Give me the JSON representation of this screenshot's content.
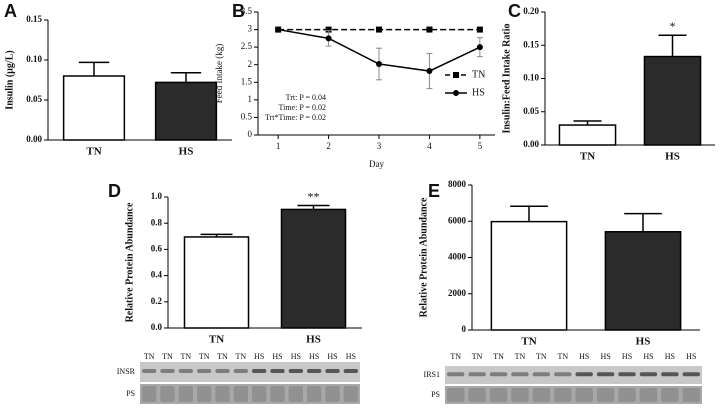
{
  "chart_data": [
    {
      "type": "bar",
      "label": "A",
      "ylabel": "Insulin (µg/L)",
      "categories": [
        "TN",
        "HS"
      ],
      "values": [
        0.08,
        0.072
      ],
      "errors": [
        0.017,
        0.012
      ],
      "colors": [
        "#ffffff",
        "#2b2b2b"
      ],
      "ylim": [
        0,
        0.15
      ],
      "yticks": [
        {
          "value": 0,
          "label": "0.00"
        },
        {
          "value": 0.05,
          "label": "0.05"
        },
        {
          "value": 0.1,
          "label": "0.10"
        },
        {
          "value": 0.15,
          "label": "0.15"
        }
      ]
    },
    {
      "type": "line",
      "label": "B",
      "xlabel": "Day",
      "ylabel": "Feed Intake (kg)",
      "x": [
        1,
        2,
        3,
        4,
        5
      ],
      "series": [
        {
          "name": "TN",
          "color": "#000000",
          "dash": true,
          "marker": "square",
          "values": [
            3,
            3,
            3,
            3,
            3
          ]
        },
        {
          "name": "HS",
          "color": "#000000",
          "dash": false,
          "marker": "circle",
          "values": [
            3,
            2.75,
            2.02,
            1.82,
            2.5
          ],
          "errors": [
            0,
            0.22,
            0.45,
            0.5,
            0.27
          ]
        }
      ],
      "xlim": [
        0.6,
        5.3
      ],
      "ylim": [
        0,
        3.5
      ],
      "xticks": [
        1,
        2,
        3,
        4,
        5
      ],
      "yticks": [
        0,
        0.5,
        1,
        1.5,
        2,
        2.5,
        3,
        3.5
      ],
      "annotations": [
        "Trt: P = 0.04",
        "Time: P = 0.02",
        "Trt*Time: P = 0.02"
      ],
      "legend": "right"
    },
    {
      "type": "bar",
      "label": "C",
      "ylabel": "Insulin:Feed Intake Ratio",
      "categories": [
        "TN",
        "HS"
      ],
      "values": [
        0.03,
        0.133
      ],
      "errors": [
        0.006,
        0.032
      ],
      "colors": [
        "#ffffff",
        "#2b2b2b"
      ],
      "ylim": [
        0,
        0.2
      ],
      "yticks": [
        {
          "value": 0,
          "label": "0.00"
        },
        {
          "value": 0.05,
          "label": "0.05"
        },
        {
          "value": 0.1,
          "label": "0.10"
        },
        {
          "value": 0.15,
          "label": "0.15"
        },
        {
          "value": 0.2,
          "label": "0.20"
        }
      ],
      "annotations": [
        "*"
      ]
    },
    {
      "type": "bar",
      "label": "D",
      "ylabel": "Relative Protein Abundance",
      "categories": [
        "TN",
        "HS"
      ],
      "values": [
        0.695,
        0.905
      ],
      "errors": [
        0.02,
        0.03
      ],
      "colors": [
        "#ffffff",
        "#2b2b2b"
      ],
      "ylim": [
        0,
        1
      ],
      "yticks": [
        {
          "value": 0,
          "label": "0.0"
        },
        {
          "value": 0.2,
          "label": "0.2"
        },
        {
          "value": 0.4,
          "label": "0.4"
        },
        {
          "value": 0.6,
          "label": "0.6"
        },
        {
          "value": 0.8,
          "label": "0.8"
        },
        {
          "value": 1,
          "label": "1.0"
        }
      ],
      "annotations": [
        "**"
      ]
    },
    {
      "type": "bar",
      "label": "E",
      "ylabel": "Relative Protein Abundance",
      "categories": [
        "TN",
        "HS"
      ],
      "values": [
        5980,
        5420
      ],
      "errors": [
        850,
        1000
      ],
      "colors": [
        "#ffffff",
        "#2b2b2b"
      ],
      "ylim": [
        0,
        8000
      ],
      "yticks": [
        0,
        2000,
        4000,
        6000,
        8000
      ]
    }
  ],
  "blots": [
    {
      "lanes": [
        "TN",
        "TN",
        "TN",
        "TN",
        "TN",
        "TN",
        "HS",
        "HS",
        "HS",
        "HS",
        "HS",
        "HS"
      ],
      "rows": [
        "INSR",
        "PS"
      ]
    },
    {
      "lanes": [
        "TN",
        "TN",
        "TN",
        "TN",
        "TN",
        "TN",
        "HS",
        "HS",
        "HS",
        "HS",
        "HS",
        "HS"
      ],
      "rows": [
        "IRS1",
        "PS"
      ]
    }
  ]
}
